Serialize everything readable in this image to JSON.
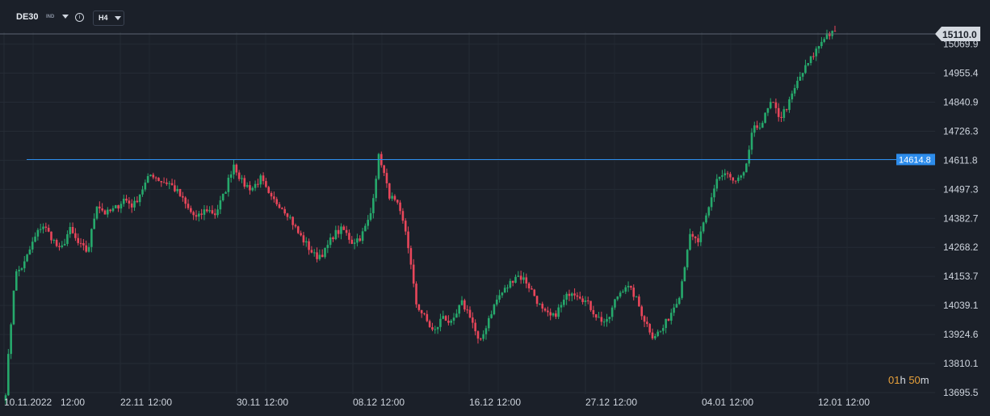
{
  "toolbar": {
    "symbol": "DE30",
    "asset_type": "IND",
    "info_icon": "info-icon",
    "timeframe": "H4"
  },
  "countdown": {
    "hours": "01",
    "h_unit": "h",
    "minutes": "50",
    "m_unit": "m"
  },
  "colors": {
    "background": "#1b2029",
    "bull": "#26a96c",
    "bear": "#e8465a",
    "level_line": "#2d8ceb",
    "price_tag": "#2d8ceb",
    "countdown_digits": "#e8a13a"
  },
  "chart_data": {
    "type": "candlestick",
    "instrument": "DE30",
    "timeframe": "H4",
    "x_tick_labels": [
      "10.11.2022",
      "12:00",
      "22.11",
      "12:00",
      "30.11",
      "12:00",
      "08.12",
      "12:00",
      "16.12",
      "12:00",
      "27.12",
      "12:00",
      "04.01",
      "12:00",
      "12.01",
      "12:00"
    ],
    "y_tick_labels": [
      "15069.9",
      "14955.4",
      "14840.9",
      "14726.3",
      "14611.8",
      "14497.3",
      "14382.7",
      "14268.2",
      "14153.7",
      "14039.1",
      "13924.6",
      "13810.1",
      "13695.5"
    ],
    "ylim": [
      13695.5,
      15110.0
    ],
    "current_price": "15110.0",
    "horizontal_level": "14614.8",
    "grid": true,
    "closes_path": [
      13700,
      14160,
      14200,
      14290,
      14360,
      14310,
      14250,
      14340,
      14280,
      14250,
      14440,
      14400,
      14420,
      14460,
      14430,
      14500,
      14560,
      14530,
      14520,
      14480,
      14420,
      14380,
      14420,
      14400,
      14480,
      14600,
      14520,
      14500,
      14540,
      14460,
      14440,
      14400,
      14330,
      14280,
      14230,
      14250,
      14320,
      14340,
      14290,
      14310,
      14390,
      14640,
      14480,
      14430,
      14320,
      14050,
      13990,
      13930,
      14000,
      13960,
      14050,
      14000,
      13880,
      13990,
      14070,
      14110,
      14160,
      14140,
      14080,
      14010,
      13990,
      14040,
      14100,
      14080,
      14040,
      13990,
      13970,
      14070,
      14120,
      14080,
      13990,
      13920,
      13940,
      14010,
      14090,
      14310,
      14290,
      14400,
      14540,
      14560,
      14520,
      14550,
      14730,
      14760,
      14840,
      14780,
      14840,
      14930,
      14990,
      15050,
      15110,
      15110
    ],
    "candle_count": 310
  }
}
